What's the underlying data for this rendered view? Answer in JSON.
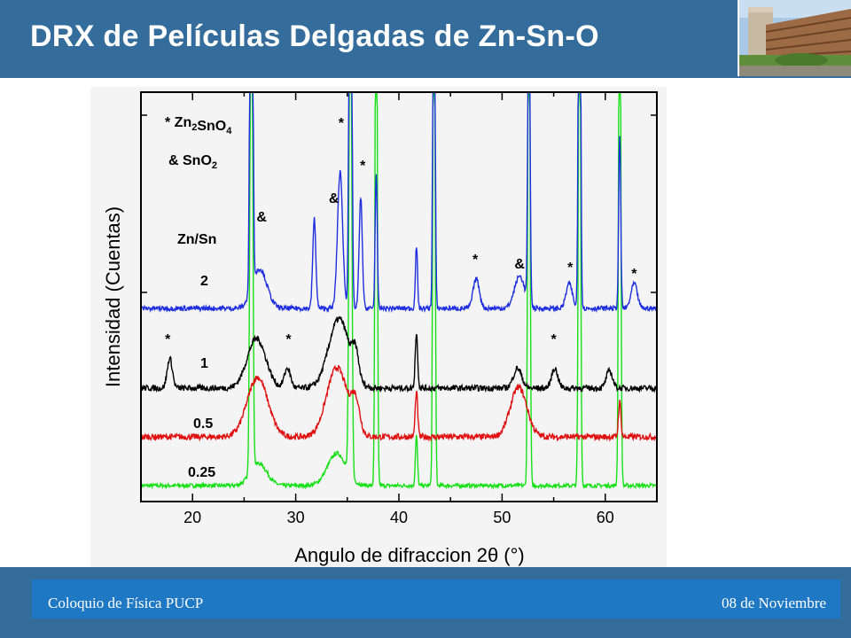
{
  "slide": {
    "title": "DRX de Películas Delgadas de Zn-Sn-O",
    "footer_left": "Coloquio de Física PUCP",
    "footer_right": "08 de Noviembre"
  },
  "colors": {
    "header": "#346c9c",
    "footer_bar": "#1f78c4"
  },
  "chart_data": {
    "type": "line",
    "xlabel": "Angulo de difraccion 2θ (°)",
    "ylabel": "Intensidad (Cuentas)",
    "xlim": [
      15,
      65
    ],
    "xticks": [
      20,
      30,
      40,
      50,
      60
    ],
    "legend": {
      "line1": "* Zn2SnO4",
      "line2": "& SnO2",
      "heading": "Zn/Sn"
    },
    "series": [
      {
        "name": "2",
        "color": "#1f2fe0",
        "baseline": 0.82,
        "noise": 0.1,
        "peaks": [
          [
            26.5,
            1.6,
            0.7
          ],
          [
            31.8,
            3.6,
            0.15
          ],
          [
            34.3,
            5.5,
            0.25
          ],
          [
            35.3,
            25,
            0.12
          ],
          [
            36.3,
            4.5,
            0.15
          ],
          [
            37.8,
            5.5,
            0.1
          ],
          [
            41.7,
            2.5,
            0.1
          ],
          [
            43.4,
            18,
            0.1
          ],
          [
            47.5,
            1.2,
            0.3
          ],
          [
            51.7,
            1.3,
            0.5
          ],
          [
            52.6,
            15,
            0.1
          ],
          [
            56.5,
            1.0,
            0.3
          ],
          [
            57.5,
            25,
            0.1
          ],
          [
            61.4,
            7,
            0.1
          ],
          [
            62.8,
            1.0,
            0.3
          ],
          [
            25.7,
            25,
            0.12
          ]
        ]
      },
      {
        "name": "1",
        "color": "#000000",
        "baseline": 0.82,
        "noise": 0.12,
        "peaks": [
          [
            17.8,
            1.2,
            0.25
          ],
          [
            26.2,
            2.0,
            0.9
          ],
          [
            29.2,
            0.8,
            0.3
          ],
          [
            34.2,
            2.8,
            1.0
          ],
          [
            35.8,
            1.0,
            0.3
          ],
          [
            41.7,
            2.2,
            0.12
          ],
          [
            51.5,
            0.8,
            0.4
          ],
          [
            55.1,
            0.8,
            0.3
          ],
          [
            60.4,
            0.7,
            0.3
          ]
        ]
      },
      {
        "name": "0.5",
        "color": "#e01010",
        "baseline": 0.78,
        "noise": 0.12,
        "peaks": [
          [
            26.3,
            2.4,
            1.0
          ],
          [
            34.0,
            2.8,
            1.0
          ],
          [
            35.8,
            1.2,
            0.4
          ],
          [
            41.7,
            1.8,
            0.12
          ],
          [
            51.6,
            2.0,
            0.8
          ],
          [
            61.4,
            1.4,
            0.12
          ]
        ]
      },
      {
        "name": "0.25",
        "color": "#18e018",
        "baseline": 0.55,
        "noise": 0.08,
        "peaks": [
          [
            25.7,
            25,
            0.12
          ],
          [
            26.4,
            0.9,
            0.8
          ],
          [
            34.0,
            1.3,
            0.9
          ],
          [
            35.3,
            25,
            0.12
          ],
          [
            37.8,
            25,
            0.1
          ],
          [
            41.7,
            2.0,
            0.1
          ],
          [
            43.4,
            25,
            0.1
          ],
          [
            52.6,
            25,
            0.1
          ],
          [
            57.5,
            25,
            0.1
          ],
          [
            61.4,
            25,
            0.1
          ]
        ]
      }
    ],
    "annotations": [
      {
        "text": "*",
        "x": 17.6,
        "row": 1
      },
      {
        "text": "*",
        "x": 29.3,
        "row": 1
      },
      {
        "text": "*",
        "x": 55.0,
        "row": 1
      },
      {
        "text": "&",
        "x": 26.7,
        "row": 0
      },
      {
        "text": "&",
        "x": 33.7,
        "row": 0
      },
      {
        "text": "*",
        "x": 34.4,
        "row": 0
      },
      {
        "text": "*",
        "x": 36.5,
        "row": 0
      },
      {
        "text": "*",
        "x": 47.4,
        "row": 0
      },
      {
        "text": "&",
        "x": 51.7,
        "row": 0
      },
      {
        "text": "*",
        "x": 56.6,
        "row": 0
      },
      {
        "text": "*",
        "x": 62.8,
        "row": 0
      }
    ]
  }
}
